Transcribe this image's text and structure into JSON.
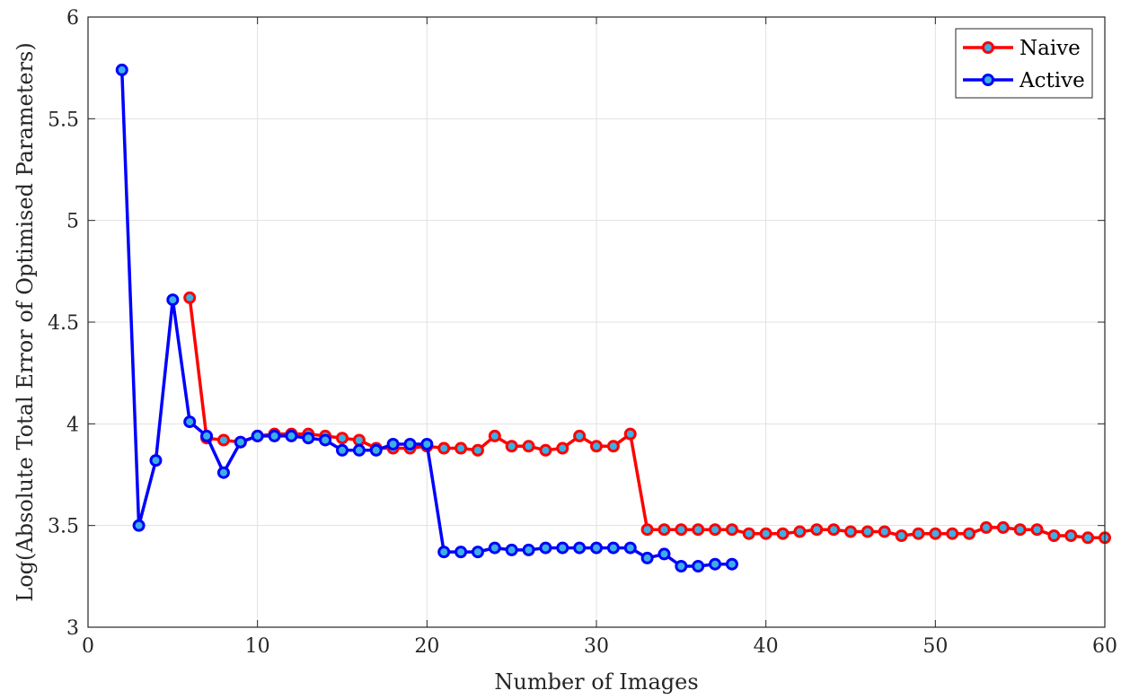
{
  "chart_data": {
    "type": "line",
    "title": "",
    "xlabel": "Number of Images",
    "ylabel": "Log(Absolute Total Error of Optimised Parameters)",
    "xlim": [
      0,
      60
    ],
    "ylim": [
      3,
      6
    ],
    "xticks": [
      0,
      10,
      20,
      30,
      40,
      50,
      60
    ],
    "yticks": [
      3,
      3.5,
      4,
      4.5,
      5,
      5.5,
      6
    ],
    "ytick_labels": [
      "3",
      "3.5",
      "4",
      "4.5",
      "5",
      "5.5",
      "6"
    ],
    "grid": true,
    "legend_position": "top-right",
    "marker_fill": "#3bb0e6",
    "series": [
      {
        "name": "Naive",
        "color": "#ff0000",
        "x": [
          6,
          7,
          8,
          9,
          10,
          11,
          12,
          13,
          14,
          15,
          16,
          17,
          18,
          19,
          20,
          21,
          22,
          23,
          24,
          25,
          26,
          27,
          28,
          29,
          30,
          31,
          32,
          33,
          34,
          35,
          36,
          37,
          38,
          39,
          40,
          41,
          42,
          43,
          44,
          45,
          46,
          47,
          48,
          49,
          50,
          51,
          52,
          53,
          54,
          55,
          56,
          57,
          58,
          59,
          60
        ],
        "y": [
          4.62,
          3.93,
          3.92,
          3.91,
          3.94,
          3.95,
          3.95,
          3.95,
          3.94,
          3.93,
          3.92,
          3.88,
          3.88,
          3.88,
          3.89,
          3.88,
          3.88,
          3.87,
          3.94,
          3.89,
          3.89,
          3.87,
          3.88,
          3.94,
          3.89,
          3.89,
          3.95,
          3.48,
          3.48,
          3.48,
          3.48,
          3.48,
          3.48,
          3.46,
          3.46,
          3.46,
          3.47,
          3.48,
          3.48,
          3.47,
          3.47,
          3.47,
          3.45,
          3.46,
          3.46,
          3.46,
          3.46,
          3.49,
          3.49,
          3.48,
          3.48,
          3.45,
          3.45,
          3.44,
          3.44
        ]
      },
      {
        "name": "Active",
        "color": "#0000ff",
        "x": [
          2,
          3,
          4,
          5,
          6,
          7,
          8,
          9,
          10,
          11,
          12,
          13,
          14,
          15,
          16,
          17,
          18,
          19,
          20,
          21,
          22,
          23,
          24,
          25,
          26,
          27,
          28,
          29,
          30,
          31,
          32,
          33,
          34,
          35,
          36,
          37,
          38
        ],
        "y": [
          5.74,
          3.5,
          3.82,
          4.61,
          4.01,
          3.94,
          3.76,
          3.91,
          3.94,
          3.94,
          3.94,
          3.93,
          3.92,
          3.87,
          3.87,
          3.87,
          3.9,
          3.9,
          3.9,
          3.37,
          3.37,
          3.37,
          3.39,
          3.38,
          3.38,
          3.39,
          3.39,
          3.39,
          3.39,
          3.39,
          3.39,
          3.34,
          3.36,
          3.3,
          3.3,
          3.31,
          3.31
        ]
      }
    ]
  }
}
